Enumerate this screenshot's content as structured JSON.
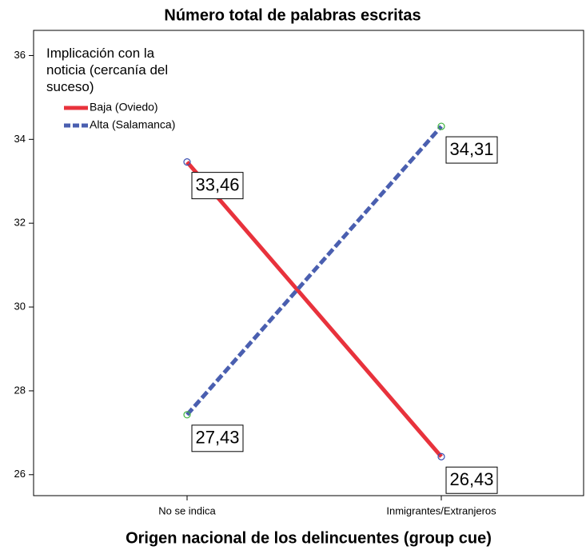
{
  "chart_data": {
    "type": "line",
    "title": "Número total de palabras escritas",
    "xlabel": "Origen nacional de los delincuentes (group cue)",
    "legend_title": "Implicación con la noticia (cercanía del suceso)",
    "legend": "upper left",
    "categories": [
      "No se indica",
      "Inmigrantes/Extranjeros"
    ],
    "series": [
      {
        "name": "Baja (Oviedo)",
        "color": "#e8323c",
        "marker_color": "#3a4db0",
        "dash": false,
        "values": [
          33.46,
          26.43
        ],
        "value_labels": [
          "33,46",
          "26,43"
        ]
      },
      {
        "name": "Alta (Salamanca)",
        "color": "#4a5fb0",
        "marker_color": "#3db33d",
        "dash": true,
        "values": [
          27.43,
          34.31
        ],
        "value_labels": [
          "27,43",
          "34,31"
        ]
      }
    ],
    "ylim": [
      25.5,
      36.6
    ],
    "yticks": [
      26,
      28,
      30,
      32,
      34,
      36
    ],
    "grid": false
  }
}
